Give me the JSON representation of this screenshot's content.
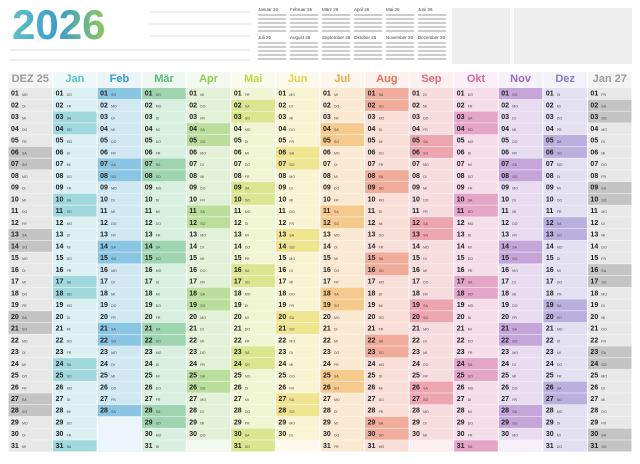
{
  "title": "2026",
  "weekdays": [
    "MO",
    "DI",
    "MI",
    "DO",
    "FR",
    "SA",
    "SO"
  ],
  "days": [
    "01",
    "02",
    "03",
    "04",
    "05",
    "06",
    "07",
    "08",
    "09",
    "10",
    "11",
    "12",
    "13",
    "14",
    "15",
    "16",
    "17",
    "18",
    "19",
    "20",
    "21",
    "22",
    "23",
    "24",
    "25",
    "26",
    "27",
    "28",
    "29",
    "30",
    "31"
  ],
  "mini_calendars": [
    "Januar 26",
    "Februar 26",
    "März 26",
    "April 26",
    "Mai 26",
    "Juni 26",
    "Juli 26",
    "August 26",
    "September 26",
    "Oktober 26",
    "November 26",
    "Dezember 26"
  ],
  "months": [
    {
      "name": "DEZ 25",
      "color": "#9a9a9a",
      "days": 31,
      "first": 0
    },
    {
      "name": "Jan",
      "color": "#5fbfc6",
      "days": 31,
      "first": 3
    },
    {
      "name": "Feb",
      "color": "#3a9dd0",
      "days": 28,
      "first": 6
    },
    {
      "name": "Mär",
      "color": "#5cb87a",
      "days": 31,
      "first": 6
    },
    {
      "name": "Apr",
      "color": "#8ec95a",
      "days": 30,
      "first": 2
    },
    {
      "name": "Mai",
      "color": "#c2d647",
      "days": 31,
      "first": 4
    },
    {
      "name": "Jun",
      "color": "#e3d146",
      "days": 30,
      "first": 0
    },
    {
      "name": "Jul",
      "color": "#f0a640",
      "days": 31,
      "first": 2
    },
    {
      "name": "Aug",
      "color": "#e8735a",
      "days": 31,
      "first": 5
    },
    {
      "name": "Sep",
      "color": "#e0687a",
      "days": 30,
      "first": 1
    },
    {
      "name": "Okt",
      "color": "#d468a0",
      "days": 31,
      "first": 3
    },
    {
      "name": "Nov",
      "color": "#9a6ac0",
      "days": 30,
      "first": 6
    },
    {
      "name": "Dez",
      "color": "#8a7ac8",
      "days": 31,
      "first": 1
    },
    {
      "name": "Jan 27",
      "color": "#9a9a9a",
      "days": 31,
      "first": 4
    }
  ]
}
